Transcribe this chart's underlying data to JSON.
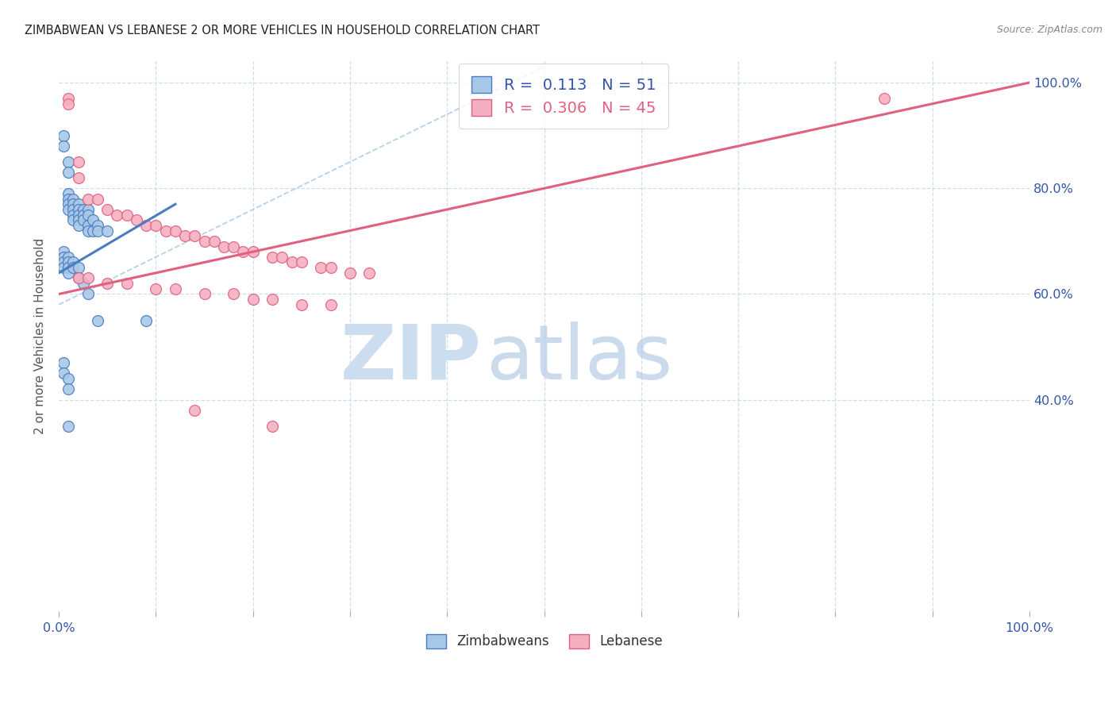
{
  "title": "ZIMBABWEAN VS LEBANESE 2 OR MORE VEHICLES IN HOUSEHOLD CORRELATION CHART",
  "source": "Source: ZipAtlas.com",
  "ylabel": "2 or more Vehicles in Household",
  "zimbabwean_R": "0.113",
  "zimbabwean_N": "51",
  "lebanese_R": "0.306",
  "lebanese_N": "45",
  "zim_color": "#a8c8e8",
  "leb_color": "#f5afc0",
  "zim_line_color": "#4a7cc0",
  "leb_line_color": "#e06080",
  "diagonal_color": "#b8d0ea",
  "zim_scatter_x": [
    0.005,
    0.005,
    0.01,
    0.01,
    0.01,
    0.01,
    0.01,
    0.01,
    0.015,
    0.015,
    0.015,
    0.015,
    0.015,
    0.02,
    0.02,
    0.02,
    0.02,
    0.02,
    0.025,
    0.025,
    0.025,
    0.03,
    0.03,
    0.03,
    0.03,
    0.035,
    0.035,
    0.04,
    0.04,
    0.05,
    0.005,
    0.005,
    0.005,
    0.005,
    0.01,
    0.01,
    0.01,
    0.01,
    0.015,
    0.015,
    0.02,
    0.02,
    0.025,
    0.03,
    0.04,
    0.09,
    0.005,
    0.005,
    0.01,
    0.01,
    0.01
  ],
  "zim_scatter_y": [
    0.9,
    0.88,
    0.85,
    0.83,
    0.79,
    0.78,
    0.77,
    0.76,
    0.78,
    0.77,
    0.76,
    0.75,
    0.74,
    0.77,
    0.76,
    0.75,
    0.74,
    0.73,
    0.76,
    0.75,
    0.74,
    0.76,
    0.75,
    0.73,
    0.72,
    0.74,
    0.72,
    0.73,
    0.72,
    0.72,
    0.68,
    0.67,
    0.66,
    0.65,
    0.67,
    0.66,
    0.65,
    0.64,
    0.66,
    0.65,
    0.65,
    0.63,
    0.62,
    0.6,
    0.55,
    0.55,
    0.47,
    0.45,
    0.44,
    0.42,
    0.35
  ],
  "leb_scatter_x": [
    0.01,
    0.01,
    0.02,
    0.02,
    0.03,
    0.04,
    0.05,
    0.06,
    0.07,
    0.08,
    0.09,
    0.1,
    0.11,
    0.12,
    0.13,
    0.14,
    0.15,
    0.16,
    0.17,
    0.18,
    0.19,
    0.2,
    0.22,
    0.23,
    0.24,
    0.25,
    0.27,
    0.28,
    0.3,
    0.32,
    0.02,
    0.03,
    0.05,
    0.07,
    0.1,
    0.12,
    0.15,
    0.18,
    0.2,
    0.22,
    0.25,
    0.28,
    0.14,
    0.22,
    0.85
  ],
  "leb_scatter_y": [
    0.97,
    0.96,
    0.85,
    0.82,
    0.78,
    0.78,
    0.76,
    0.75,
    0.75,
    0.74,
    0.73,
    0.73,
    0.72,
    0.72,
    0.71,
    0.71,
    0.7,
    0.7,
    0.69,
    0.69,
    0.68,
    0.68,
    0.67,
    0.67,
    0.66,
    0.66,
    0.65,
    0.65,
    0.64,
    0.64,
    0.63,
    0.63,
    0.62,
    0.62,
    0.61,
    0.61,
    0.6,
    0.6,
    0.59,
    0.59,
    0.58,
    0.58,
    0.38,
    0.35,
    0.97
  ],
  "zim_line_x": [
    0.0,
    0.12
  ],
  "zim_line_y": [
    0.64,
    0.77
  ],
  "leb_line_x": [
    0.0,
    1.0
  ],
  "leb_line_y": [
    0.6,
    1.0
  ],
  "diag_line_x": [
    0.0,
    0.5
  ],
  "diag_line_y": [
    0.58,
    1.03
  ],
  "xlim": [
    0.0,
    1.0
  ],
  "ylim": [
    0.0,
    1.04
  ]
}
